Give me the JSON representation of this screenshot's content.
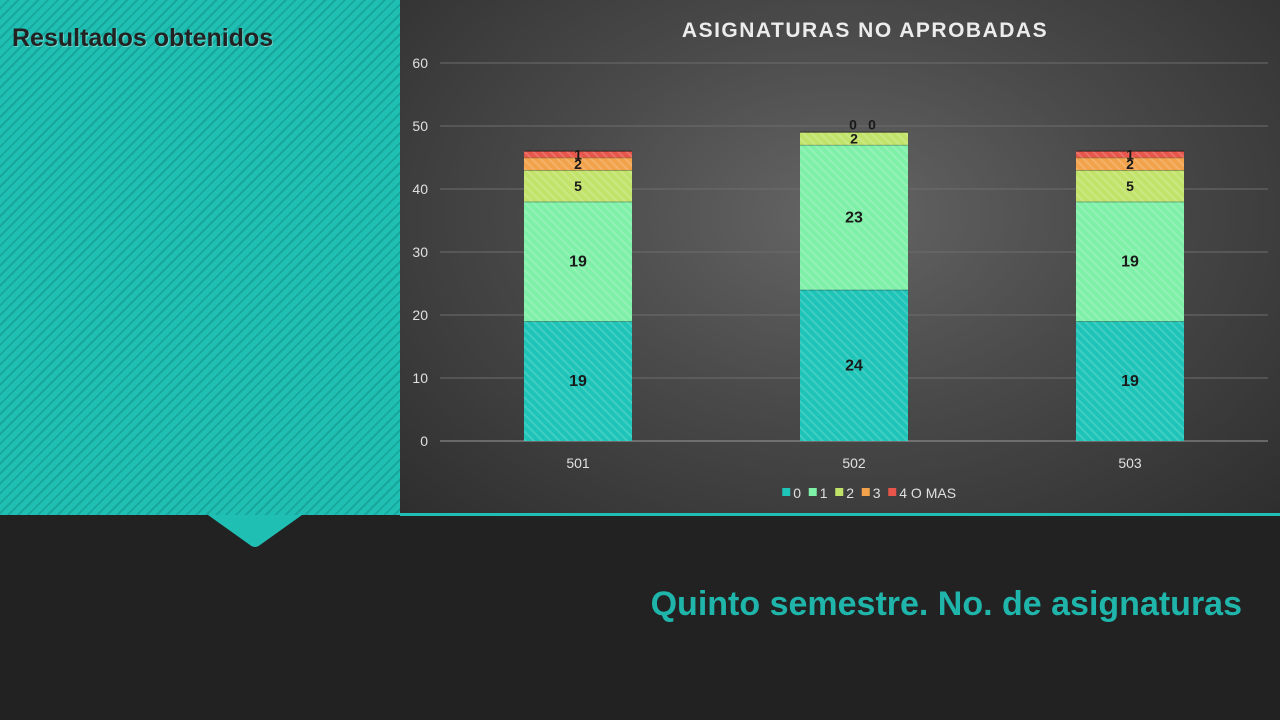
{
  "slide": {
    "section_title": "Resultados obtenidos",
    "subtitle": "Quinto semestre. No. de asignaturas"
  },
  "colors": {
    "teal": "#1fbfb3",
    "background": "#222222"
  },
  "chart_data": {
    "type": "bar",
    "stacked": true,
    "title": "ASIGNATURAS NO APROBADAS",
    "xlabel": "",
    "ylabel": "",
    "categories": [
      "501",
      "502",
      "503"
    ],
    "ylim": [
      0,
      60
    ],
    "yticks": [
      0,
      10,
      20,
      30,
      40,
      50,
      60
    ],
    "grid": true,
    "legend_position": "bottom",
    "series": [
      {
        "name": "0",
        "values": [
          19,
          24,
          19
        ],
        "color": "#1ec4b8"
      },
      {
        "name": "1",
        "values": [
          19,
          23,
          19
        ],
        "color": "#7ff0a8"
      },
      {
        "name": "2",
        "values": [
          5,
          2,
          5
        ],
        "color": "#c2e36a"
      },
      {
        "name": "3",
        "values": [
          2,
          0,
          2
        ],
        "color": "#f2a24b"
      },
      {
        "name": "4 O MAS",
        "values": [
          1,
          0,
          1
        ],
        "color": "#e8554a"
      }
    ]
  }
}
